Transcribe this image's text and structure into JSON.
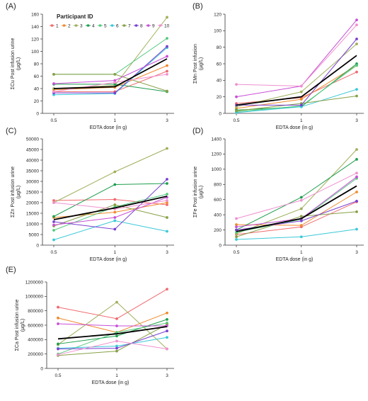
{
  "legend": {
    "title": "Participant ID",
    "labels": [
      "1",
      "2",
      "3",
      "4",
      "5",
      "6",
      "7",
      "8",
      "9",
      "10"
    ]
  },
  "colors": {
    "participants": [
      "#f06a6f",
      "#f08a2e",
      "#9eb05a",
      "#1f9e4e",
      "#52c97e",
      "#3ac8d8",
      "#88a048",
      "#7a3fd0",
      "#c84fd6",
      "#f090d0"
    ],
    "mean": "#000000",
    "axis": "#333333"
  },
  "chart_data": [
    {
      "type": "line",
      "panel": "(A)",
      "x": [
        "0.5",
        "1",
        "3"
      ],
      "xlabel": "EDTA dose (in g)",
      "ylabel": "ΣCu Post infusion urine (µg/L)",
      "ylim": [
        0,
        160
      ],
      "yticks": [
        "0",
        "20",
        "40",
        "60",
        "80",
        "100",
        "120",
        "140",
        "160"
      ],
      "legend_position": "top-left",
      "series": [
        {
          "name": "1",
          "values": [
            35,
            35,
            68
          ]
        },
        {
          "name": "2",
          "values": [
            38,
            42,
            77
          ]
        },
        {
          "name": "3",
          "values": [
            40,
            45,
            155
          ]
        },
        {
          "name": "4",
          "values": [
            47,
            47,
            35
          ]
        },
        {
          "name": "5",
          "values": [
            63,
            63,
            121
          ]
        },
        {
          "name": "6",
          "values": [
            30,
            32,
            106
          ]
        },
        {
          "name": "7",
          "values": [
            63,
            63,
            36
          ]
        },
        {
          "name": "8",
          "values": [
            33,
            33,
            108
          ]
        },
        {
          "name": "9",
          "values": [
            48,
            53,
            92
          ]
        },
        {
          "name": "10",
          "values": [
            35,
            50,
            63
          ]
        },
        {
          "name": "",
          "values": [
            40,
            43,
            88
          ],
          "mean": true
        }
      ]
    },
    {
      "type": "line",
      "panel": "(B)",
      "x": [
        "0.5",
        "1",
        "3"
      ],
      "xlabel": "EDTA dose (in g)",
      "ylabel": "ΣMn Post infusion (µg/L)",
      "ylim": [
        0,
        120
      ],
      "yticks": [
        "0",
        "20",
        "40",
        "60",
        "80",
        "100",
        "120"
      ],
      "series": [
        {
          "name": "1",
          "values": [
            12,
            19,
            50
          ]
        },
        {
          "name": "2",
          "values": [
            6,
            17,
            58
          ]
        },
        {
          "name": "3",
          "values": [
            8,
            26,
            84
          ]
        },
        {
          "name": "4",
          "values": [
            4,
            8,
            60
          ]
        },
        {
          "name": "5",
          "values": [
            2,
            9,
            58
          ]
        },
        {
          "name": "6",
          "values": [
            1,
            8,
            29
          ]
        },
        {
          "name": "7",
          "values": [
            3,
            12,
            21
          ]
        },
        {
          "name": "8",
          "values": [
            10,
            10,
            90
          ]
        },
        {
          "name": "9",
          "values": [
            20,
            33,
            113
          ]
        },
        {
          "name": "10",
          "values": [
            35,
            33,
            107
          ]
        },
        {
          "name": "",
          "values": [
            10,
            20,
            70
          ],
          "mean": true
        }
      ]
    },
    {
      "type": "line",
      "panel": "(C)",
      "x": [
        "0.5",
        "1",
        "3"
      ],
      "xlabel": "EDTA dose (in g)",
      "ylabel": "ΣZn Post infusion urine (µg/L)",
      "ylim": [
        0,
        50000
      ],
      "yticks": [
        "0",
        "5000",
        "10000",
        "15000",
        "20000",
        "25000",
        "30000",
        "35000",
        "40000",
        "45000",
        "50000"
      ],
      "series": [
        {
          "name": "1",
          "values": [
            21000,
            21500,
            19000
          ]
        },
        {
          "name": "2",
          "values": [
            13000,
            15500,
            20000
          ]
        },
        {
          "name": "3",
          "values": [
            20000,
            34500,
            45500
          ]
        },
        {
          "name": "4",
          "values": [
            13500,
            28500,
            29000
          ]
        },
        {
          "name": "5",
          "values": [
            7000,
            18000,
            24000
          ]
        },
        {
          "name": "6",
          "values": [
            2500,
            11500,
            6500
          ]
        },
        {
          "name": "7",
          "values": [
            9000,
            19000,
            13000
          ]
        },
        {
          "name": "8",
          "values": [
            11000,
            7500,
            31000
          ]
        },
        {
          "name": "9",
          "values": [
            9500,
            13000,
            22500
          ]
        },
        {
          "name": "10",
          "values": [
            20000,
            17000,
            21000
          ]
        },
        {
          "name": "",
          "values": [
            12000,
            17500,
            23000
          ],
          "mean": true
        }
      ]
    },
    {
      "type": "line",
      "panel": "(D)",
      "x": [
        "0.5",
        "1",
        "3"
      ],
      "xlabel": "EDTA dose (in g)",
      "ylabel": "ΣFe Post infusion urine (µg/L)",
      "ylim": [
        0,
        1400
      ],
      "yticks": [
        "0",
        "200",
        "400",
        "600",
        "800",
        "1000",
        "1200",
        "1400"
      ],
      "series": [
        {
          "name": "1",
          "values": [
            140,
            240,
            570
          ]
        },
        {
          "name": "2",
          "values": [
            270,
            260,
            700
          ]
        },
        {
          "name": "3",
          "values": [
            150,
            480,
            1260
          ]
        },
        {
          "name": "4",
          "values": [
            200,
            630,
            1130
          ]
        },
        {
          "name": "5",
          "values": [
            170,
            340,
            880
          ]
        },
        {
          "name": "6",
          "values": [
            75,
            110,
            210
          ]
        },
        {
          "name": "7",
          "values": [
            110,
            380,
            440
          ]
        },
        {
          "name": "8",
          "values": [
            200,
            320,
            580
          ]
        },
        {
          "name": "9",
          "values": [
            240,
            350,
            900
          ]
        },
        {
          "name": "10",
          "values": [
            350,
            590,
            950
          ]
        },
        {
          "name": "",
          "values": [
            180,
            350,
            780
          ],
          "mean": true
        }
      ]
    },
    {
      "type": "line",
      "panel": "(E)",
      "x": [
        "0.5",
        "1",
        "3"
      ],
      "xlabel": "EDTA dose (in g)",
      "ylabel": "ΣCa Post infusion urine (µg/L)",
      "ylim": [
        0,
        1200000
      ],
      "yticks": [
        "0",
        "200000",
        "400000",
        "600000",
        "800000",
        "1000000",
        "1200000"
      ],
      "series": [
        {
          "name": "1",
          "values": [
            850000,
            690000,
            1100000
          ]
        },
        {
          "name": "2",
          "values": [
            700000,
            500000,
            770000
          ]
        },
        {
          "name": "3",
          "values": [
            330000,
            920000,
            270000
          ]
        },
        {
          "name": "4",
          "values": [
            340000,
            450000,
            680000
          ]
        },
        {
          "name": "5",
          "values": [
            200000,
            500000,
            630000
          ]
        },
        {
          "name": "6",
          "values": [
            280000,
            310000,
            430000
          ]
        },
        {
          "name": "7",
          "values": [
            180000,
            240000,
            610000
          ]
        },
        {
          "name": "8",
          "values": [
            270000,
            280000,
            520000
          ]
        },
        {
          "name": "9",
          "values": [
            620000,
            590000,
            590000
          ]
        },
        {
          "name": "10",
          "values": [
            190000,
            380000,
            270000
          ]
        },
        {
          "name": "",
          "values": [
            410000,
            480000,
            580000
          ],
          "mean": true
        }
      ]
    }
  ]
}
